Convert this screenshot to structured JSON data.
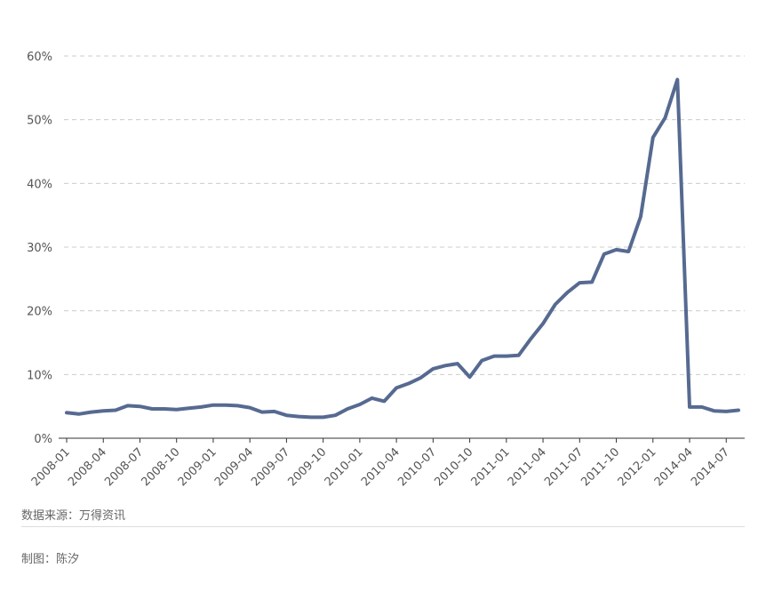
{
  "chart_data": {
    "type": "line",
    "title": "",
    "xlabel": "",
    "ylabel": "",
    "ylim": [
      0,
      60
    ],
    "y_ticks": [
      "0%",
      "10%",
      "20%",
      "30%",
      "40%",
      "50%",
      "60%"
    ],
    "x_tick_labels": [
      "2008-01",
      "2008-04",
      "2008-07",
      "2008-10",
      "2009-01",
      "2009-04",
      "2009-07",
      "2009-10",
      "2010-01",
      "2010-04",
      "2010-07",
      "2010-10",
      "2011-01",
      "2011-04",
      "2011-07",
      "2011-10",
      "2012-01",
      "2014-04",
      "2014-07"
    ],
    "grid": true,
    "series": [
      {
        "color": "#566a91",
        "x": [
          "2008-01",
          "2008-02",
          "2008-03",
          "2008-04",
          "2008-05",
          "2008-06",
          "2008-07",
          "2008-08",
          "2008-09",
          "2008-10",
          "2008-11",
          "2008-12",
          "2009-01",
          "2009-02",
          "2009-03",
          "2009-04",
          "2009-05",
          "2009-06",
          "2009-07",
          "2009-08",
          "2009-09",
          "2009-10",
          "2009-11",
          "2009-12",
          "2010-01",
          "2010-02",
          "2010-03",
          "2010-04",
          "2010-05",
          "2010-06",
          "2010-07",
          "2010-08",
          "2010-09",
          "2010-10",
          "2010-11",
          "2010-12",
          "2011-01",
          "2011-02",
          "2011-03",
          "2011-04",
          "2011-05",
          "2011-06",
          "2011-07",
          "2011-08",
          "2011-09",
          "2011-10",
          "2011-11",
          "2011-12",
          "2012-01",
          "2012-02",
          "2012-03",
          "2014-04",
          "2014-05",
          "2014-06",
          "2014-07",
          "2014-08"
        ],
        "values": [
          4.0,
          3.8,
          4.1,
          4.3,
          4.4,
          5.1,
          5.0,
          4.6,
          4.6,
          4.5,
          4.7,
          4.9,
          5.2,
          5.2,
          5.1,
          4.8,
          4.1,
          4.2,
          3.6,
          3.4,
          3.3,
          3.3,
          3.6,
          4.6,
          5.3,
          6.3,
          5.8,
          7.9,
          8.6,
          9.5,
          10.9,
          11.4,
          11.7,
          9.6,
          12.2,
          12.9,
          12.9,
          13.0,
          15.6,
          18.0,
          21.0,
          22.9,
          24.4,
          24.5,
          28.9,
          29.6,
          29.3,
          34.8,
          47.2,
          50.3,
          56.3,
          4.9,
          4.9,
          4.3,
          4.2,
          4.4
        ]
      }
    ]
  },
  "footer": {
    "source": "数据来源：万得资讯",
    "author": "制图：陈汐"
  }
}
